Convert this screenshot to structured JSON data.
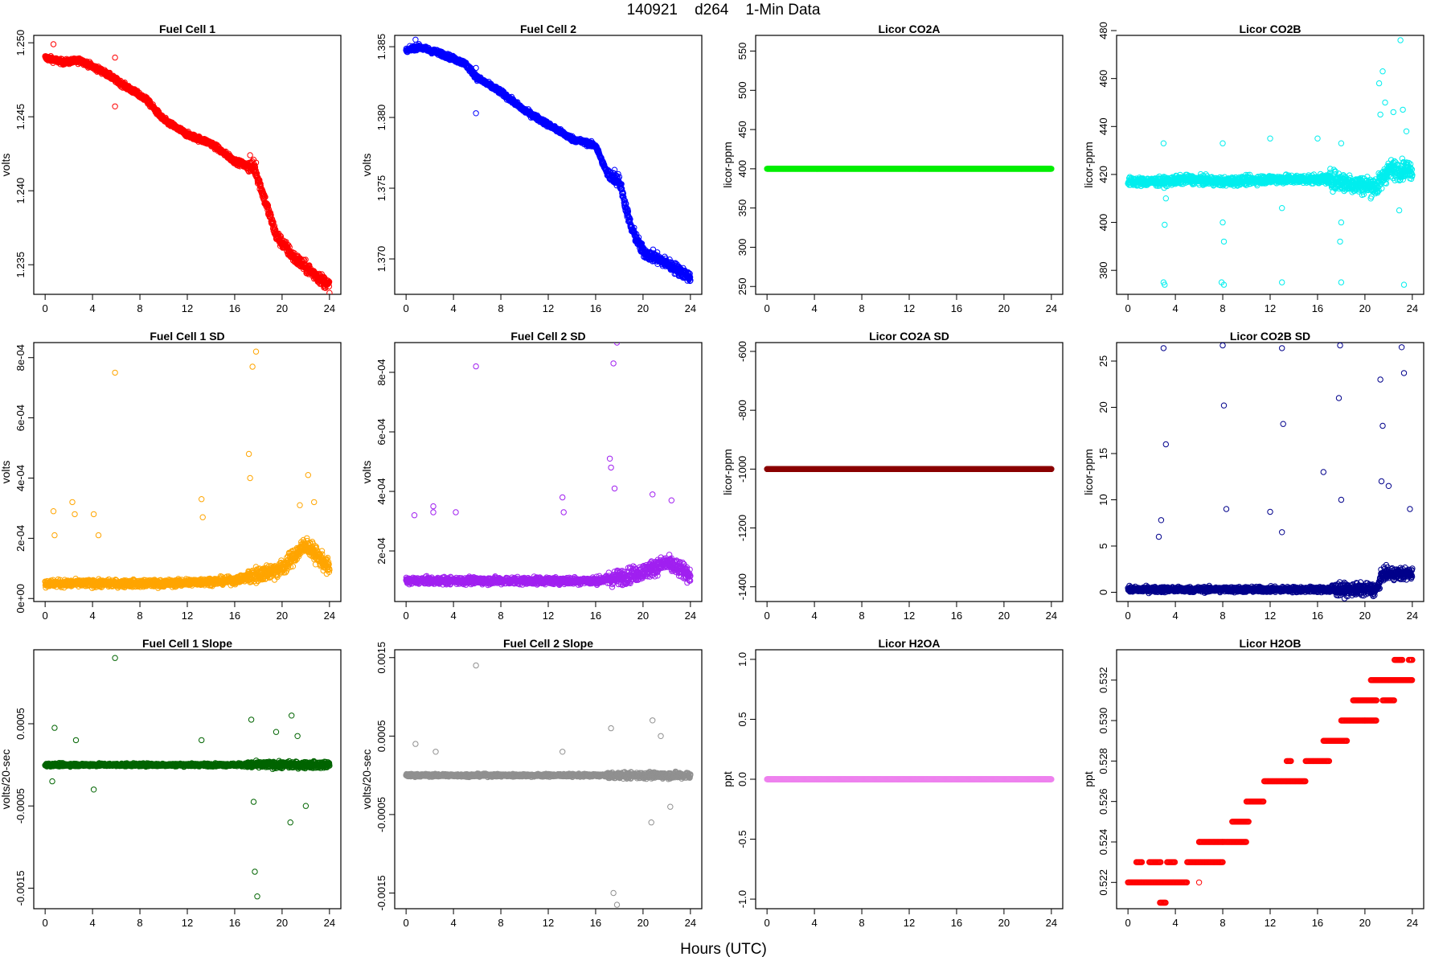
{
  "page": {
    "title": "140921    d264    1-Min Data",
    "xlabel": "Hours (UTC)"
  },
  "chart_data": [
    {
      "type": "scatter",
      "title": "Fuel Cell 1",
      "ylabel": "volts",
      "color": "#ff0000",
      "xlim": [
        0,
        24
      ],
      "ylim": [
        1.233,
        1.2505
      ],
      "xticks": [
        0,
        4,
        8,
        12,
        16,
        20,
        24
      ],
      "yticks": [
        1.235,
        1.24,
        1.245,
        1.25
      ],
      "yticklabels": [
        "1.235",
        "1.240",
        "1.245",
        "1.250"
      ],
      "trend": [
        [
          0,
          1.249
        ],
        [
          1.5,
          1.2487
        ],
        [
          3,
          1.2488
        ],
        [
          5,
          1.248
        ],
        [
          6.5,
          1.2472
        ],
        [
          8.5,
          1.2462
        ],
        [
          10,
          1.2448
        ],
        [
          12,
          1.2438
        ],
        [
          14,
          1.2432
        ],
        [
          16,
          1.242
        ],
        [
          17.7,
          1.2415
        ],
        [
          18.5,
          1.2395
        ],
        [
          19.5,
          1.237
        ],
        [
          21,
          1.2355
        ],
        [
          22.5,
          1.2345
        ],
        [
          24,
          1.2336
        ]
      ],
      "jitter": 0.0003,
      "outliers": [
        [
          0.7,
          1.2499
        ],
        [
          5.9,
          1.249
        ],
        [
          5.9,
          1.2457
        ],
        [
          15.5,
          1.2425
        ],
        [
          17.3,
          1.2424
        ],
        [
          17.6,
          1.2421
        ],
        [
          17.8,
          1.2419
        ]
      ]
    },
    {
      "type": "scatter",
      "title": "Fuel Cell 2",
      "ylabel": "volts",
      "color": "#0000ff",
      "xlim": [
        0,
        24
      ],
      "ylim": [
        1.3675,
        1.3858
      ],
      "xticks": [
        0,
        4,
        8,
        12,
        16,
        20,
        24
      ],
      "yticks": [
        1.37,
        1.375,
        1.38,
        1.385
      ],
      "yticklabels": [
        "1.370",
        "1.375",
        "1.380",
        "1.385"
      ],
      "trend": [
        [
          0,
          1.3847
        ],
        [
          1,
          1.385
        ],
        [
          3,
          1.3845
        ],
        [
          5,
          1.3838
        ],
        [
          6,
          1.3828
        ],
        [
          8,
          1.3818
        ],
        [
          10,
          1.3805
        ],
        [
          12,
          1.3795
        ],
        [
          14,
          1.3785
        ],
        [
          16,
          1.378
        ],
        [
          17,
          1.376
        ],
        [
          18,
          1.3755
        ],
        [
          19,
          1.3722
        ],
        [
          20,
          1.3705
        ],
        [
          22,
          1.3697
        ],
        [
          24,
          1.3687
        ]
      ],
      "jitter": 0.0003,
      "outliers": [
        [
          0.8,
          1.3855
        ],
        [
          5.9,
          1.3835
        ],
        [
          5.9,
          1.3803
        ],
        [
          17.6,
          1.3763
        ],
        [
          17.9,
          1.376
        ]
      ]
    },
    {
      "type": "scatter",
      "title": "Licor CO2A",
      "ylabel": "licor-ppm",
      "color": "#00ee00",
      "xlim": [
        0,
        24
      ],
      "ylim": [
        240,
        570
      ],
      "xticks": [
        0,
        4,
        8,
        12,
        16,
        20,
        24
      ],
      "yticks": [
        250,
        300,
        350,
        400,
        450,
        500,
        550
      ],
      "yticklabels": [
        "250",
        "300",
        "350",
        "400",
        "450",
        "500",
        "550"
      ],
      "trend": [
        [
          0,
          400
        ],
        [
          24,
          400
        ]
      ],
      "jitter": 0,
      "outliers": []
    },
    {
      "type": "scatter",
      "title": "Licor CO2B",
      "ylabel": "licor-ppm",
      "color": "#00eeee",
      "xlim": [
        0,
        24
      ],
      "ylim": [
        370,
        478
      ],
      "xticks": [
        0,
        4,
        8,
        12,
        16,
        20,
        24
      ],
      "yticks": [
        380,
        400,
        420,
        440,
        460,
        480
      ],
      "yticklabels": [
        "380",
        "400",
        "420",
        "440",
        "460",
        "480"
      ],
      "trend": [
        [
          0,
          417
        ],
        [
          3,
          417
        ],
        [
          5,
          418
        ],
        [
          8,
          417
        ],
        [
          12,
          418
        ],
        [
          17,
          418
        ],
        [
          19,
          416
        ],
        [
          21,
          415
        ],
        [
          22,
          422
        ],
        [
          24,
          422
        ]
      ],
      "jitter": 3,
      "outliers": [
        [
          3,
          433
        ],
        [
          3.2,
          410
        ],
        [
          3.1,
          399
        ],
        [
          3,
          375
        ],
        [
          3.1,
          374
        ],
        [
          8,
          433
        ],
        [
          8.1,
          392
        ],
        [
          8,
          400
        ],
        [
          7.9,
          375
        ],
        [
          8.1,
          374
        ],
        [
          12,
          435
        ],
        [
          13,
          406
        ],
        [
          13,
          375
        ],
        [
          16,
          435
        ],
        [
          18,
          433
        ],
        [
          18,
          400
        ],
        [
          17.9,
          392
        ],
        [
          18,
          375
        ],
        [
          21.2,
          458
        ],
        [
          21.5,
          463
        ],
        [
          21.7,
          450
        ],
        [
          21.3,
          445
        ],
        [
          22.4,
          446
        ],
        [
          23,
          476
        ],
        [
          23.2,
          447
        ],
        [
          23.5,
          438
        ],
        [
          23.3,
          374
        ],
        [
          22.9,
          405
        ]
      ]
    },
    {
      "type": "scatter",
      "title": "Fuel Cell 1 SD",
      "ylabel": "volts",
      "color": "#ffa500",
      "xlim": [
        0,
        24
      ],
      "ylim": [
        -1e-05,
        0.00085
      ],
      "xticks": [
        0,
        4,
        8,
        12,
        16,
        20,
        24
      ],
      "yticks": [
        0,
        0.0002,
        0.0004,
        0.0006,
        0.0008
      ],
      "yticklabels": [
        "0e+00",
        "2e-04",
        "4e-04",
        "6e-04",
        "8e-04"
      ],
      "trend": [
        [
          0,
          5e-05
        ],
        [
          10,
          5e-05
        ],
        [
          16,
          6e-05
        ],
        [
          18,
          8e-05
        ],
        [
          20,
          0.0001
        ],
        [
          22,
          0.00018
        ],
        [
          24,
          0.0001
        ]
      ],
      "jitter": 2e-05,
      "outliers": [
        [
          0.7,
          0.00029
        ],
        [
          0.8,
          0.00021
        ],
        [
          2.3,
          0.00032
        ],
        [
          2.5,
          0.00028
        ],
        [
          4.1,
          0.00028
        ],
        [
          4.5,
          0.00021
        ],
        [
          5.9,
          0.00075
        ],
        [
          13.2,
          0.00033
        ],
        [
          13.3,
          0.00027
        ],
        [
          17.2,
          0.00048
        ],
        [
          17.3,
          0.0004
        ],
        [
          17.5,
          0.00077
        ],
        [
          17.8,
          0.00082
        ],
        [
          22.2,
          0.00041
        ],
        [
          21.5,
          0.00031
        ],
        [
          22.7,
          0.00032
        ]
      ]
    },
    {
      "type": "scatter",
      "title": "Fuel Cell 2 SD",
      "ylabel": "volts",
      "color": "#a020f0",
      "xlim": [
        0,
        24
      ],
      "ylim": [
        3e-05,
        0.0009
      ],
      "xticks": [
        0,
        4,
        8,
        12,
        16,
        20,
        24
      ],
      "yticks": [
        0.0002,
        0.0004,
        0.0006,
        0.0008
      ],
      "yticklabels": [
        "2e-04",
        "4e-04",
        "6e-04",
        "8e-04"
      ],
      "trend": [
        [
          0,
          0.0001
        ],
        [
          16,
          0.0001
        ],
        [
          18,
          0.00011
        ],
        [
          20,
          0.00013
        ],
        [
          22,
          0.00016
        ],
        [
          24,
          0.00012
        ]
      ],
      "jitter": 2e-05,
      "outliers": [
        [
          0.7,
          0.00032
        ],
        [
          2.3,
          0.00035
        ],
        [
          2.3,
          0.00033
        ],
        [
          4.2,
          0.00033
        ],
        [
          5.9,
          0.00082
        ],
        [
          13.2,
          0.00038
        ],
        [
          13.3,
          0.00033
        ],
        [
          17.2,
          0.00051
        ],
        [
          17.3,
          0.00048
        ],
        [
          17.5,
          0.00083
        ],
        [
          17.8,
          0.0009
        ],
        [
          17.6,
          0.00041
        ],
        [
          20.8,
          0.00039
        ],
        [
          22.4,
          0.00037
        ]
      ]
    },
    {
      "type": "scatter",
      "title": "Licor CO2A SD",
      "ylabel": "licor-ppm",
      "color": "#8b0000",
      "xlim": [
        0,
        24
      ],
      "ylim": [
        -1450,
        -570
      ],
      "xticks": [
        0,
        4,
        8,
        12,
        16,
        20,
        24
      ],
      "yticks": [
        -1400,
        -1200,
        -1000,
        -800,
        -600
      ],
      "yticklabels": [
        "-1400",
        "-1200",
        "-1000",
        "-800",
        "-600"
      ],
      "trend": [
        [
          0,
          -1000
        ],
        [
          24,
          -1000
        ]
      ],
      "jitter": 0,
      "outliers": []
    },
    {
      "type": "scatter",
      "title": "Licor CO2B SD",
      "ylabel": "licor-ppm",
      "color": "#00008b",
      "xlim": [
        0,
        24
      ],
      "ylim": [
        -1,
        27
      ],
      "xticks": [
        0,
        4,
        8,
        12,
        16,
        20,
        24
      ],
      "yticks": [
        0,
        5,
        10,
        15,
        20,
        25
      ],
      "yticklabels": [
        "0",
        "5",
        "10",
        "15",
        "20",
        "25"
      ],
      "trend": [
        [
          0,
          0.3
        ],
        [
          21,
          0.3
        ],
        [
          21.5,
          2
        ],
        [
          24,
          2
        ]
      ],
      "jitter": 0.5,
      "outliers": [
        [
          3,
          26.4
        ],
        [
          3.2,
          16
        ],
        [
          2.8,
          7.8
        ],
        [
          2.6,
          6
        ],
        [
          8,
          26.7
        ],
        [
          8.1,
          20.2
        ],
        [
          8.3,
          9
        ],
        [
          12,
          8.7
        ],
        [
          13,
          26.4
        ],
        [
          13.1,
          18.2
        ],
        [
          13,
          6.5
        ],
        [
          16.5,
          13
        ],
        [
          17.9,
          26.7
        ],
        [
          17.8,
          21
        ],
        [
          18,
          10
        ],
        [
          21.3,
          23
        ],
        [
          21.5,
          18
        ],
        [
          21.4,
          12
        ],
        [
          22,
          11.5
        ],
        [
          23.1,
          26.5
        ],
        [
          23.3,
          23.7
        ],
        [
          23.8,
          9
        ]
      ]
    },
    {
      "type": "scatter",
      "title": "Fuel Cell 1 Slope",
      "ylabel": "volts/20-sec",
      "color": "#006400",
      "xlim": [
        0,
        24
      ],
      "ylim": [
        -0.00175,
        0.0014
      ],
      "xticks": [
        0,
        4,
        8,
        12,
        16,
        20,
        24
      ],
      "yticks": [
        -0.0015,
        -0.0005,
        0.0005
      ],
      "yticklabels": [
        "-0.0015",
        "-0.0005",
        "0.0005"
      ],
      "trend": [
        [
          0,
          0
        ],
        [
          24,
          0
        ]
      ],
      "jitter": 3e-05,
      "outliers": [
        [
          0.8,
          0.00045
        ],
        [
          0.6,
          -0.0002
        ],
        [
          2.6,
          0.0003
        ],
        [
          4.1,
          -0.0003
        ],
        [
          5.9,
          0.0013
        ],
        [
          13.2,
          0.0003
        ],
        [
          17.4,
          0.00055
        ],
        [
          17.6,
          -0.00045
        ],
        [
          17.7,
          -0.0013
        ],
        [
          17.9,
          -0.0016
        ],
        [
          20.8,
          0.0006
        ],
        [
          20.7,
          -0.0007
        ],
        [
          19.5,
          0.0004
        ],
        [
          22,
          -0.0005
        ],
        [
          21.3,
          0.00035
        ]
      ]
    },
    {
      "type": "scatter",
      "title": "Fuel Cell 2 Slope",
      "ylabel": "volts/20-sec",
      "color": "#909090",
      "xlim": [
        0,
        24
      ],
      "ylim": [
        -0.0017,
        0.0016
      ],
      "xticks": [
        0,
        4,
        8,
        12,
        16,
        20,
        24
      ],
      "yticks": [
        -0.0015,
        -0.0005,
        0.0005,
        0.0015
      ],
      "yticklabels": [
        "-0.0015",
        "-0.0005",
        "0.0005",
        "0.0015"
      ],
      "trend": [
        [
          0,
          0
        ],
        [
          24,
          0
        ]
      ],
      "jitter": 3e-05,
      "outliers": [
        [
          0.8,
          0.0004
        ],
        [
          2.5,
          0.0003
        ],
        [
          5.9,
          0.0014
        ],
        [
          13.2,
          0.0003
        ],
        [
          17.3,
          0.0006
        ],
        [
          17.5,
          -0.0015
        ],
        [
          17.8,
          -0.00165
        ],
        [
          20.8,
          0.0007
        ],
        [
          20.7,
          -0.0006
        ],
        [
          21.5,
          0.0005
        ],
        [
          22.3,
          -0.0004
        ]
      ]
    },
    {
      "type": "scatter",
      "title": "Licor H2OA",
      "ylabel": "ppt",
      "color": "#ee82ee",
      "xlim": [
        0,
        24
      ],
      "ylim": [
        -1.08,
        1.08
      ],
      "xticks": [
        0,
        4,
        8,
        12,
        16,
        20,
        24
      ],
      "yticks": [
        -1,
        -0.5,
        0,
        0.5,
        1
      ],
      "yticklabels": [
        "-1.0",
        "-0.5",
        "0.0",
        "0.5",
        "1.0"
      ],
      "trend": [
        [
          0,
          0
        ],
        [
          24,
          0
        ]
      ],
      "jitter": 0,
      "outliers": []
    },
    {
      "type": "scatter",
      "title": "Licor H2OB",
      "ylabel": "ppt",
      "color": "#ff0000",
      "xlim": [
        0,
        24
      ],
      "ylim": [
        0.5207,
        0.5335
      ],
      "xticks": [
        0,
        4,
        8,
        12,
        16,
        20,
        24
      ],
      "yticks": [
        0.522,
        0.524,
        0.526,
        0.528,
        0.53,
        0.532
      ],
      "yticklabels": [
        "0.522",
        "0.524",
        "0.526",
        "0.528",
        "0.530",
        "0.532"
      ],
      "trend": [
        [
          0,
          0.522
        ],
        [
          24,
          0.533
        ]
      ],
      "jitter": 0,
      "step": 0.001,
      "segments": [
        [
          0,
          5,
          0.522
        ],
        [
          0.7,
          1.2,
          0.523
        ],
        [
          1.8,
          2.8,
          0.523
        ],
        [
          3.3,
          4,
          0.523
        ],
        [
          2.7,
          3.2,
          0.521
        ],
        [
          5,
          8,
          0.523
        ],
        [
          6,
          8,
          0.524
        ],
        [
          8,
          10,
          0.524
        ],
        [
          8.8,
          10.2,
          0.525
        ],
        [
          10,
          11.5,
          0.526
        ],
        [
          11.5,
          15,
          0.527
        ],
        [
          13.4,
          13.8,
          0.528
        ],
        [
          15,
          17,
          0.528
        ],
        [
          16.5,
          18.5,
          0.529
        ],
        [
          18,
          20,
          0.53
        ],
        [
          19,
          21,
          0.531
        ],
        [
          20,
          21,
          0.53
        ],
        [
          20.5,
          22,
          0.532
        ],
        [
          21.5,
          22.5,
          0.531
        ],
        [
          22,
          24,
          0.532
        ],
        [
          22.5,
          23.2,
          0.533
        ],
        [
          23.7,
          24,
          0.533
        ]
      ],
      "outliers": [
        [
          6,
          0.524
        ],
        [
          6,
          0.522
        ],
        [
          7.8,
          0.523
        ]
      ]
    }
  ]
}
